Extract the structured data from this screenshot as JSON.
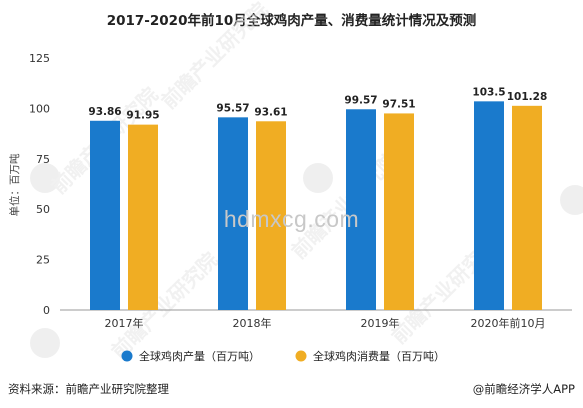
{
  "title": "2017-2020年前10月全球鸡肉产量、消费量统计情况及预测",
  "source": "资料来源：前瞻产业研究院整理",
  "credit": "@前瞻经济学人APP",
  "watermark_site": "hdmxcg.com",
  "watermark_brand": "前瞻产业研究院",
  "colors": {
    "production": "#1a7acc",
    "consumption": "#f0ad23"
  },
  "chart_data": {
    "type": "bar",
    "categories": [
      "2017年",
      "2018年",
      "2019年",
      "2020年前10月"
    ],
    "series": [
      {
        "name": "全球鸡肉产量（百万吨）",
        "values": [
          93.86,
          95.57,
          99.57,
          103.5
        ],
        "labels": [
          "93.86",
          "95.57",
          "99.57",
          "103.5"
        ]
      },
      {
        "name": "全球鸡肉消费量（百万吨）",
        "values": [
          91.95,
          93.61,
          97.51,
          101.28
        ],
        "labels": [
          "91.95",
          "93.61",
          "97.51",
          "101.28"
        ]
      }
    ],
    "ylabel": "单位：百万吨",
    "ylim": [
      0,
      125
    ],
    "yticks": [
      "0",
      "25",
      "50",
      "75",
      "100",
      "125"
    ],
    "legend_position": "bottom",
    "grid": false
  }
}
